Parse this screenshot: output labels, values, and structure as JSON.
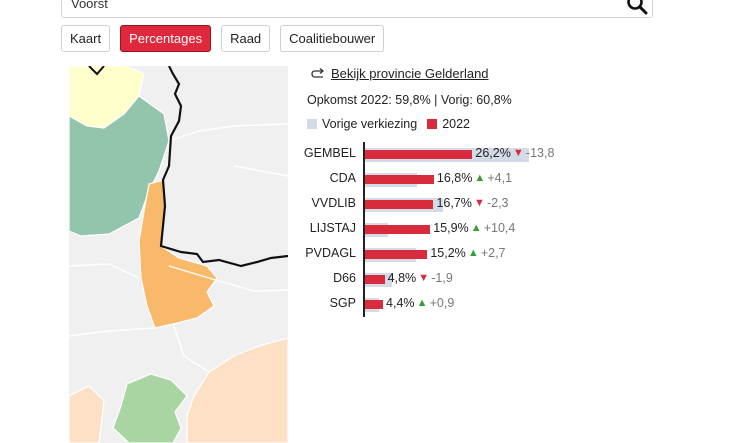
{
  "search": {
    "value": "Voorst"
  },
  "tabs": [
    {
      "label": "Kaart",
      "active": false
    },
    {
      "label": "Percentages",
      "active": true
    },
    {
      "label": "Raad",
      "active": false
    },
    {
      "label": "Coalitiebouwer",
      "active": false
    }
  ],
  "panel": {
    "province_link": "Bekijk provincie Gelderland",
    "turnout": "Opkomst 2022: 59,8% | Vorig: 60,8%",
    "legend_previous": "Vorige verkiezing",
    "legend_current": "2022"
  },
  "colors": {
    "accent": "#e0283c",
    "current_bar": "#d92b3e",
    "previous_bar": "#d3dce6",
    "up": "#3a9b3a",
    "down": "#d92b3e",
    "highlight_region": "#f9b96b"
  },
  "chart_data": {
    "type": "bar",
    "categories": [
      "GEMBEL",
      "CDA",
      "VVDLIB",
      "LIJSTAJ",
      "PVDAGL",
      "D66",
      "SGP"
    ],
    "series": [
      {
        "name": "2022",
        "values": [
          26.2,
          16.8,
          16.7,
          15.9,
          15.2,
          4.8,
          4.4
        ]
      },
      {
        "name": "Vorige verkiezing",
        "values": [
          40.0,
          12.7,
          19.0,
          5.5,
          12.5,
          6.7,
          3.5
        ]
      }
    ],
    "value_labels": [
      "26,2%",
      "16,8%",
      "16,7%",
      "15,9%",
      "15,2%",
      "4,8%",
      "4,4%"
    ],
    "change_labels": [
      "-13,8",
      "+4,1",
      "-2,3",
      "+10,4",
      "+2,7",
      "-1,9",
      "+0,9"
    ],
    "change_direction": [
      "down",
      "up",
      "down",
      "up",
      "up",
      "down",
      "up"
    ],
    "xlim": [
      0,
      40
    ]
  }
}
